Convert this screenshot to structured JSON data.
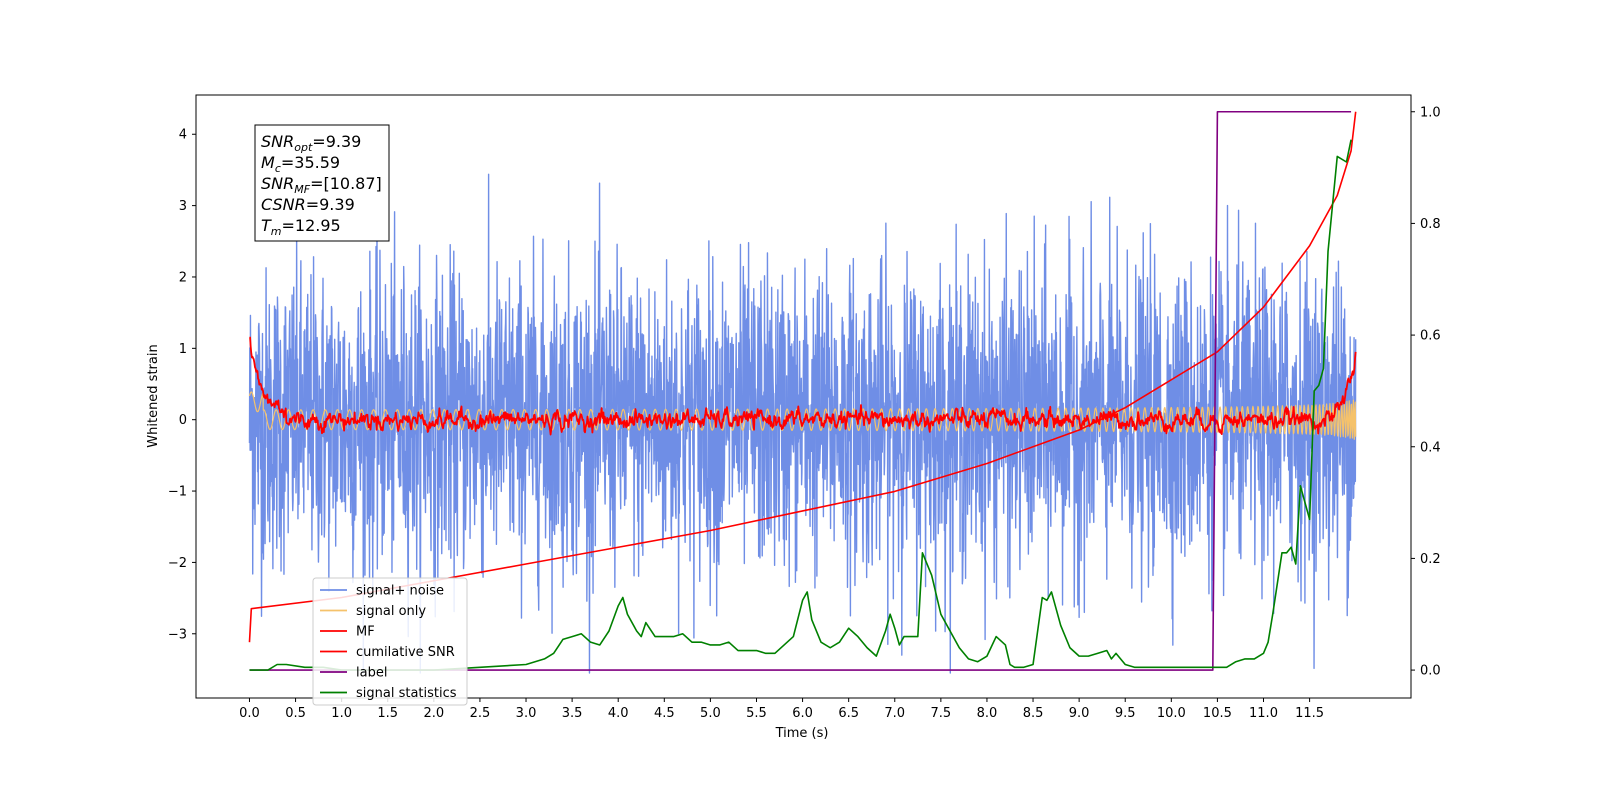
{
  "chart_data": {
    "type": "line",
    "xlabel": "Time (s)",
    "ylabel": "Whitened strain",
    "xlim": [
      -0.58,
      12.6
    ],
    "ylim": [
      -3.9,
      4.55
    ],
    "y2lim": [
      -0.05,
      1.03
    ],
    "x_ticks": [
      "0.0",
      "0.5",
      "1.0",
      "1.5",
      "2.0",
      "2.5",
      "3.0",
      "3.5",
      "4.0",
      "4.5",
      "5.0",
      "5.5",
      "6.0",
      "6.5",
      "7.0",
      "7.5",
      "8.0",
      "8.5",
      "9.0",
      "9.5",
      "10.0",
      "10.5",
      "11.0",
      "11.5"
    ],
    "y_ticks": [
      "−3",
      "−2",
      "−1",
      "0",
      "1",
      "2",
      "3",
      "4"
    ],
    "y2_ticks": [
      "0.0",
      "0.2",
      "0.4",
      "0.6",
      "0.8",
      "1.0"
    ],
    "annotation": [
      {
        "base": "SNR",
        "sub": "opt",
        "value": "=9.39"
      },
      {
        "base": "M",
        "sub": "c",
        "value": "=35.59"
      },
      {
        "base": "SNR",
        "sub": "MF",
        "value": "=[10.87]"
      },
      {
        "base": "CSNR",
        "sub": "",
        "value": "=9.39"
      },
      {
        "base": "T",
        "sub": "m",
        "value": "=12.95"
      }
    ],
    "legend_position": "lower-left",
    "series": [
      {
        "name": "signal+ noise",
        "color": "#6f8ee6",
        "axis": "left",
        "kind": "noise",
        "x_range": [
          0.0,
          12.0
        ],
        "approx_sigma": 1.0
      },
      {
        "name": "signal only",
        "color": "#f5c26b",
        "axis": "left",
        "kind": "chirp",
        "x_range": [
          0.0,
          12.0
        ],
        "approx_amplitude": 0.35
      },
      {
        "name": "MF",
        "color": "#ff0000",
        "axis": "left",
        "kind": "mf",
        "x_range": [
          0.0,
          12.0
        ]
      },
      {
        "name": "cumilative SNR",
        "color": "#ff0000",
        "axis": "right",
        "x": [
          0.0,
          0.02,
          1.0,
          2.0,
          3.0,
          4.0,
          5.0,
          6.0,
          7.0,
          8.0,
          9.0,
          9.5,
          10.0,
          10.5,
          11.0,
          11.5,
          11.8,
          11.95,
          12.0
        ],
        "y": [
          0.05,
          0.11,
          0.13,
          0.16,
          0.19,
          0.22,
          0.25,
          0.285,
          0.32,
          0.37,
          0.43,
          0.47,
          0.52,
          0.57,
          0.65,
          0.76,
          0.85,
          0.93,
          1.0
        ]
      },
      {
        "name": "label",
        "color": "#800080",
        "axis": "right",
        "x": [
          0.0,
          10.45,
          10.5,
          11.95
        ],
        "y": [
          0.0,
          0.0,
          1.0,
          1.0
        ]
      },
      {
        "name": "signal statistics",
        "color": "#008000",
        "axis": "right",
        "x": [
          0.0,
          0.2,
          0.3,
          0.4,
          0.6,
          0.8,
          1.0,
          1.5,
          2.0,
          2.5,
          3.0,
          3.2,
          3.3,
          3.4,
          3.5,
          3.6,
          3.7,
          3.8,
          3.9,
          4.0,
          4.05,
          4.1,
          4.2,
          4.25,
          4.3,
          4.4,
          4.5,
          4.6,
          4.7,
          4.8,
          4.9,
          5.0,
          5.1,
          5.2,
          5.3,
          5.4,
          5.5,
          5.6,
          5.7,
          5.8,
          5.9,
          6.0,
          6.05,
          6.1,
          6.2,
          6.3,
          6.4,
          6.5,
          6.6,
          6.7,
          6.8,
          6.9,
          6.95,
          7.0,
          7.05,
          7.1,
          7.2,
          7.25,
          7.3,
          7.4,
          7.5,
          7.6,
          7.7,
          7.8,
          7.9,
          8.0,
          8.1,
          8.2,
          8.25,
          8.3,
          8.4,
          8.5,
          8.6,
          8.65,
          8.7,
          8.8,
          8.9,
          9.0,
          9.1,
          9.2,
          9.3,
          9.35,
          9.4,
          9.5,
          9.6,
          9.8,
          10.0,
          10.2,
          10.4,
          10.5,
          10.6,
          10.7,
          10.8,
          10.9,
          11.0,
          11.05,
          11.1,
          11.2,
          11.25,
          11.3,
          11.35,
          11.4,
          11.5,
          11.55,
          11.6,
          11.65,
          11.7,
          11.8,
          11.9,
          11.95
        ],
        "y": [
          0.0,
          0.0,
          0.01,
          0.01,
          0.005,
          0.005,
          0.0,
          0.0,
          0.0,
          0.005,
          0.01,
          0.02,
          0.03,
          0.055,
          0.06,
          0.065,
          0.05,
          0.045,
          0.07,
          0.115,
          0.13,
          0.1,
          0.07,
          0.06,
          0.085,
          0.06,
          0.06,
          0.06,
          0.065,
          0.05,
          0.05,
          0.045,
          0.045,
          0.05,
          0.035,
          0.035,
          0.035,
          0.03,
          0.03,
          0.045,
          0.06,
          0.125,
          0.14,
          0.09,
          0.05,
          0.04,
          0.05,
          0.075,
          0.06,
          0.04,
          0.025,
          0.07,
          0.1,
          0.075,
          0.045,
          0.06,
          0.06,
          0.06,
          0.21,
          0.17,
          0.1,
          0.07,
          0.04,
          0.02,
          0.015,
          0.025,
          0.06,
          0.045,
          0.01,
          0.005,
          0.005,
          0.01,
          0.13,
          0.125,
          0.14,
          0.08,
          0.04,
          0.025,
          0.025,
          0.03,
          0.035,
          0.02,
          0.03,
          0.01,
          0.005,
          0.005,
          0.005,
          0.005,
          0.005,
          0.005,
          0.005,
          0.015,
          0.02,
          0.02,
          0.03,
          0.05,
          0.1,
          0.21,
          0.21,
          0.22,
          0.19,
          0.33,
          0.27,
          0.5,
          0.51,
          0.54,
          0.75,
          0.92,
          0.91,
          0.95
        ]
      }
    ]
  }
}
